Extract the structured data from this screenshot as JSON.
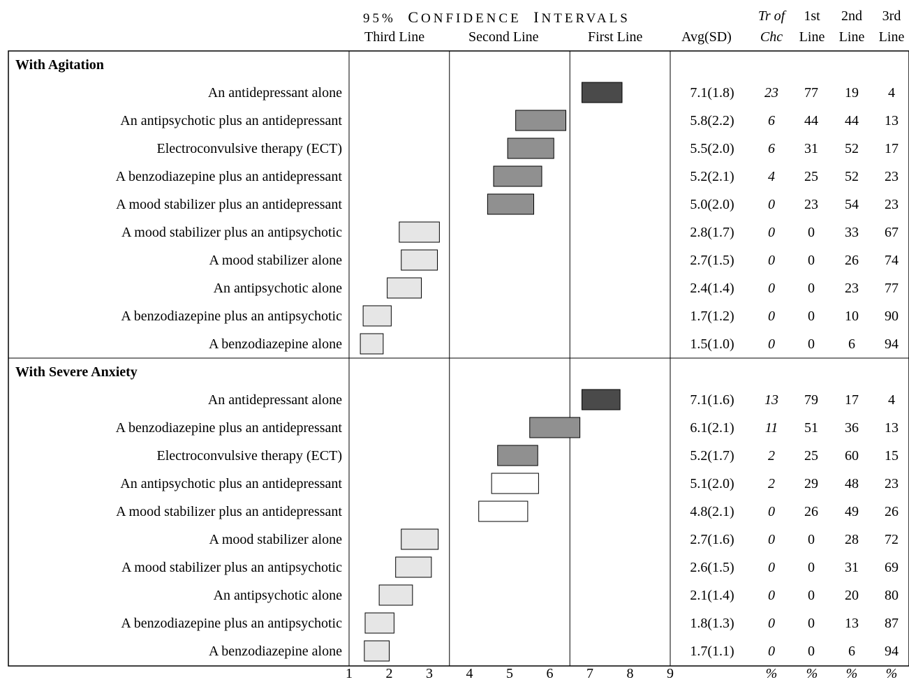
{
  "header": {
    "ci_title_prefix": "95%",
    "ci_title_c": "C",
    "ci_title_onfidence": "ONFIDENCE",
    "ci_title_i": "I",
    "ci_title_ntervals": "NTERVALS",
    "zone_third": "Third Line",
    "zone_second": "Second Line",
    "zone_first": "First Line",
    "avg_sd": "Avg(SD)",
    "tr_of": "Tr of",
    "chc": "Chc",
    "first": "1st",
    "second": "2nd",
    "third": "3rd",
    "line": "Line"
  },
  "footer": {
    "pct": "%"
  },
  "chart_data": {
    "type": "table",
    "axis": {
      "ticks": [
        "1",
        "2",
        "3",
        "4",
        "5",
        "6",
        "7",
        "8",
        "9"
      ],
      "range": [
        1,
        9
      ],
      "zone_dividers": [
        3.5,
        6.5
      ]
    },
    "colors": {
      "first_line": "#4a4a4a",
      "second_line": "#909090",
      "third_line": "#e6e6e6",
      "no_consensus": "#ffffff"
    },
    "sections": [
      {
        "title": "With Agitation",
        "rows": [
          {
            "label": "An antidepressant alone",
            "ci": [
              6.8,
              7.8
            ],
            "avg_sd": "7.1(1.8)",
            "tr": "23",
            "first": "77",
            "second": "19",
            "third": "4",
            "band": "first_line"
          },
          {
            "label": "An antipsychotic plus an antidepressant",
            "ci": [
              5.15,
              6.4
            ],
            "avg_sd": "5.8(2.2)",
            "tr": "6",
            "first": "44",
            "second": "44",
            "third": "13",
            "band": "second_line"
          },
          {
            "label": "Electroconvulsive therapy (ECT)",
            "ci": [
              4.95,
              6.1
            ],
            "avg_sd": "5.5(2.0)",
            "tr": "6",
            "first": "31",
            "second": "52",
            "third": "17",
            "band": "second_line"
          },
          {
            "label": "A benzodiazepine plus an antidepressant",
            "ci": [
              4.6,
              5.8
            ],
            "avg_sd": "5.2(2.1)",
            "tr": "4",
            "first": "25",
            "second": "52",
            "third": "23",
            "band": "second_line"
          },
          {
            "label": "A mood stabilizer plus an antidepressant",
            "ci": [
              4.45,
              5.6
            ],
            "avg_sd": "5.0(2.0)",
            "tr": "0",
            "first": "23",
            "second": "54",
            "third": "23",
            "band": "second_line"
          },
          {
            "label": "A mood stabilizer plus an antipsychotic",
            "ci": [
              2.25,
              3.25
            ],
            "avg_sd": "2.8(1.7)",
            "tr": "0",
            "first": "0",
            "second": "33",
            "third": "67",
            "band": "third_line"
          },
          {
            "label": "A mood stabilizer alone",
            "ci": [
              2.3,
              3.2
            ],
            "avg_sd": "2.7(1.5)",
            "tr": "0",
            "first": "0",
            "second": "26",
            "third": "74",
            "band": "third_line"
          },
          {
            "label": "An antipsychotic alone",
            "ci": [
              1.95,
              2.8
            ],
            "avg_sd": "2.4(1.4)",
            "tr": "0",
            "first": "0",
            "second": "23",
            "third": "77",
            "band": "third_line"
          },
          {
            "label": "A benzodiazepine plus an antipsychotic",
            "ci": [
              1.35,
              2.05
            ],
            "avg_sd": "1.7(1.2)",
            "tr": "0",
            "first": "0",
            "second": "10",
            "third": "90",
            "band": "third_line"
          },
          {
            "label": "A benzodiazepine alone",
            "ci": [
              1.28,
              1.85
            ],
            "avg_sd": "1.5(1.0)",
            "tr": "0",
            "first": "0",
            "second": "6",
            "third": "94",
            "band": "third_line"
          }
        ]
      },
      {
        "title": "With Severe Anxiety",
        "rows": [
          {
            "label": "An antidepressant alone",
            "ci": [
              6.8,
              7.75
            ],
            "avg_sd": "7.1(1.6)",
            "tr": "13",
            "first": "79",
            "second": "17",
            "third": "4",
            "band": "first_line"
          },
          {
            "label": "A benzodiazepine plus an antidepressant",
            "ci": [
              5.5,
              6.75
            ],
            "avg_sd": "6.1(2.1)",
            "tr": "11",
            "first": "51",
            "second": "36",
            "third": "13",
            "band": "second_line"
          },
          {
            "label": "Electroconvulsive therapy (ECT)",
            "ci": [
              4.7,
              5.7
            ],
            "avg_sd": "5.2(1.7)",
            "tr": "2",
            "first": "25",
            "second": "60",
            "third": "15",
            "band": "second_line"
          },
          {
            "label": "An antipsychotic plus an antidepressant",
            "ci": [
              4.55,
              5.72
            ],
            "avg_sd": "5.1(2.0)",
            "tr": "2",
            "first": "29",
            "second": "48",
            "third": "23",
            "band": "no_consensus"
          },
          {
            "label": "A mood stabilizer plus an antidepressant",
            "ci": [
              4.23,
              5.45
            ],
            "avg_sd": "4.8(2.1)",
            "tr": "0",
            "first": "26",
            "second": "49",
            "third": "26",
            "band": "no_consensus"
          },
          {
            "label": "A mood stabilizer alone",
            "ci": [
              2.3,
              3.22
            ],
            "avg_sd": "2.7(1.6)",
            "tr": "0",
            "first": "0",
            "second": "28",
            "third": "72",
            "band": "third_line"
          },
          {
            "label": "A mood stabilizer plus an antipsychotic",
            "ci": [
              2.16,
              3.05
            ],
            "avg_sd": "2.6(1.5)",
            "tr": "0",
            "first": "0",
            "second": "31",
            "third": "69",
            "band": "third_line"
          },
          {
            "label": "An antipsychotic alone",
            "ci": [
              1.75,
              2.58
            ],
            "avg_sd": "2.1(1.4)",
            "tr": "0",
            "first": "0",
            "second": "20",
            "third": "80",
            "band": "third_line"
          },
          {
            "label": "A benzodiazepine plus an antipsychotic",
            "ci": [
              1.4,
              2.12
            ],
            "avg_sd": "1.8(1.3)",
            "tr": "0",
            "first": "0",
            "second": "13",
            "third": "87",
            "band": "third_line"
          },
          {
            "label": "A benzodiazepine alone",
            "ci": [
              1.38,
              2.0
            ],
            "avg_sd": "1.7(1.1)",
            "tr": "0",
            "first": "0",
            "second": "6",
            "third": "94",
            "band": "third_line"
          }
        ]
      }
    ]
  }
}
